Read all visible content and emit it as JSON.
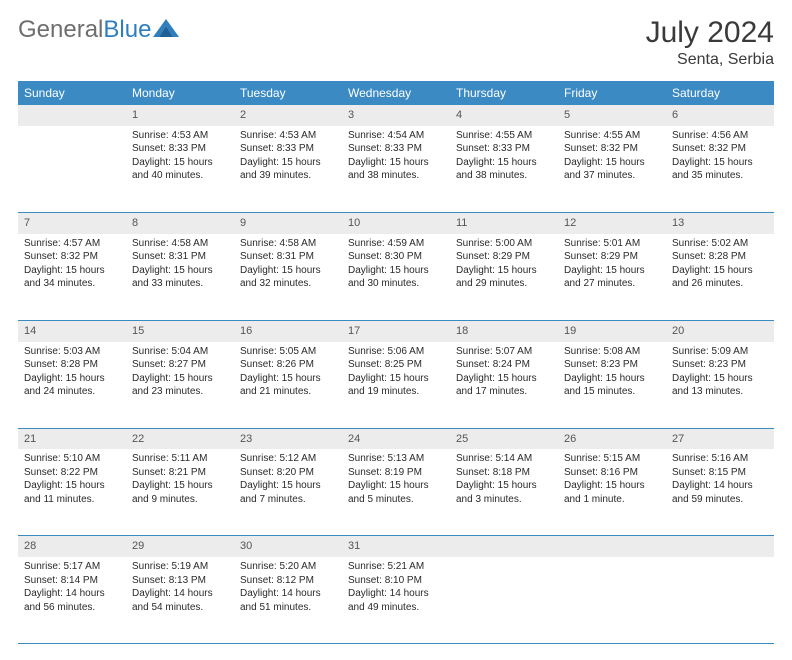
{
  "logo": {
    "part1": "General",
    "part2": "Blue"
  },
  "title": "July 2024",
  "location": "Senta, Serbia",
  "colors": {
    "header_bg": "#3b8ac4",
    "header_text": "#ffffff",
    "daynum_bg": "#ececec",
    "cell_border": "#3b8ac4",
    "logo_grey": "#6e6e6e",
    "logo_blue": "#2f7fbf"
  },
  "weekdays": [
    "Sunday",
    "Monday",
    "Tuesday",
    "Wednesday",
    "Thursday",
    "Friday",
    "Saturday"
  ],
  "weeks": [
    [
      null,
      {
        "n": "1",
        "sr": "4:53 AM",
        "ss": "8:33 PM",
        "dl": "15 hours and 40 minutes."
      },
      {
        "n": "2",
        "sr": "4:53 AM",
        "ss": "8:33 PM",
        "dl": "15 hours and 39 minutes."
      },
      {
        "n": "3",
        "sr": "4:54 AM",
        "ss": "8:33 PM",
        "dl": "15 hours and 38 minutes."
      },
      {
        "n": "4",
        "sr": "4:55 AM",
        "ss": "8:33 PM",
        "dl": "15 hours and 38 minutes."
      },
      {
        "n": "5",
        "sr": "4:55 AM",
        "ss": "8:32 PM",
        "dl": "15 hours and 37 minutes."
      },
      {
        "n": "6",
        "sr": "4:56 AM",
        "ss": "8:32 PM",
        "dl": "15 hours and 35 minutes."
      }
    ],
    [
      {
        "n": "7",
        "sr": "4:57 AM",
        "ss": "8:32 PM",
        "dl": "15 hours and 34 minutes."
      },
      {
        "n": "8",
        "sr": "4:58 AM",
        "ss": "8:31 PM",
        "dl": "15 hours and 33 minutes."
      },
      {
        "n": "9",
        "sr": "4:58 AM",
        "ss": "8:31 PM",
        "dl": "15 hours and 32 minutes."
      },
      {
        "n": "10",
        "sr": "4:59 AM",
        "ss": "8:30 PM",
        "dl": "15 hours and 30 minutes."
      },
      {
        "n": "11",
        "sr": "5:00 AM",
        "ss": "8:29 PM",
        "dl": "15 hours and 29 minutes."
      },
      {
        "n": "12",
        "sr": "5:01 AM",
        "ss": "8:29 PM",
        "dl": "15 hours and 27 minutes."
      },
      {
        "n": "13",
        "sr": "5:02 AM",
        "ss": "8:28 PM",
        "dl": "15 hours and 26 minutes."
      }
    ],
    [
      {
        "n": "14",
        "sr": "5:03 AM",
        "ss": "8:28 PM",
        "dl": "15 hours and 24 minutes."
      },
      {
        "n": "15",
        "sr": "5:04 AM",
        "ss": "8:27 PM",
        "dl": "15 hours and 23 minutes."
      },
      {
        "n": "16",
        "sr": "5:05 AM",
        "ss": "8:26 PM",
        "dl": "15 hours and 21 minutes."
      },
      {
        "n": "17",
        "sr": "5:06 AM",
        "ss": "8:25 PM",
        "dl": "15 hours and 19 minutes."
      },
      {
        "n": "18",
        "sr": "5:07 AM",
        "ss": "8:24 PM",
        "dl": "15 hours and 17 minutes."
      },
      {
        "n": "19",
        "sr": "5:08 AM",
        "ss": "8:23 PM",
        "dl": "15 hours and 15 minutes."
      },
      {
        "n": "20",
        "sr": "5:09 AM",
        "ss": "8:23 PM",
        "dl": "15 hours and 13 minutes."
      }
    ],
    [
      {
        "n": "21",
        "sr": "5:10 AM",
        "ss": "8:22 PM",
        "dl": "15 hours and 11 minutes."
      },
      {
        "n": "22",
        "sr": "5:11 AM",
        "ss": "8:21 PM",
        "dl": "15 hours and 9 minutes."
      },
      {
        "n": "23",
        "sr": "5:12 AM",
        "ss": "8:20 PM",
        "dl": "15 hours and 7 minutes."
      },
      {
        "n": "24",
        "sr": "5:13 AM",
        "ss": "8:19 PM",
        "dl": "15 hours and 5 minutes."
      },
      {
        "n": "25",
        "sr": "5:14 AM",
        "ss": "8:18 PM",
        "dl": "15 hours and 3 minutes."
      },
      {
        "n": "26",
        "sr": "5:15 AM",
        "ss": "8:16 PM",
        "dl": "15 hours and 1 minute."
      },
      {
        "n": "27",
        "sr": "5:16 AM",
        "ss": "8:15 PM",
        "dl": "14 hours and 59 minutes."
      }
    ],
    [
      {
        "n": "28",
        "sr": "5:17 AM",
        "ss": "8:14 PM",
        "dl": "14 hours and 56 minutes."
      },
      {
        "n": "29",
        "sr": "5:19 AM",
        "ss": "8:13 PM",
        "dl": "14 hours and 54 minutes."
      },
      {
        "n": "30",
        "sr": "5:20 AM",
        "ss": "8:12 PM",
        "dl": "14 hours and 51 minutes."
      },
      {
        "n": "31",
        "sr": "5:21 AM",
        "ss": "8:10 PM",
        "dl": "14 hours and 49 minutes."
      },
      null,
      null,
      null
    ]
  ],
  "labels": {
    "sunrise": "Sunrise: ",
    "sunset": "Sunset: ",
    "daylight": "Daylight: "
  }
}
